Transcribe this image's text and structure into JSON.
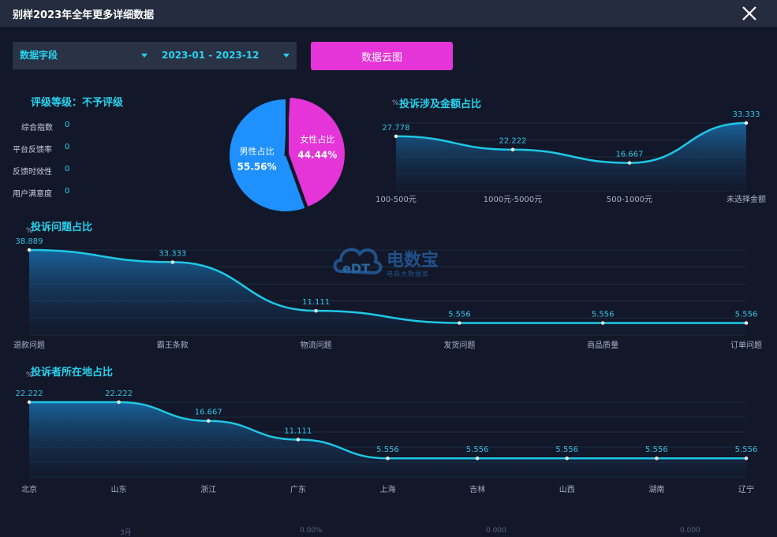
{
  "window": {
    "title": "别样2023年全年更多详细数据",
    "close_icon": "close-icon"
  },
  "filters": {
    "field": "数据字段",
    "date_range": "2023-01 - 2023-12",
    "caret_icon": "caret-down-icon"
  },
  "cloud_button": "数据云图",
  "rating": {
    "title": "评级等级：不予评级",
    "metrics": [
      {
        "label": "综合指数",
        "value": "0"
      },
      {
        "label": "平台反馈率",
        "value": "0"
      },
      {
        "label": "反馈时效性",
        "value": "0"
      },
      {
        "label": "用户满意度",
        "value": "0"
      }
    ]
  },
  "watermark": {
    "brand": "电数宝",
    "tagline": "电商大数据库",
    "mark": "eDT"
  },
  "footer": [
    "3月",
    "0.00%",
    "0.000",
    "0.000"
  ],
  "chart_data": [
    {
      "type": "pie",
      "categories": [
        "男性占比",
        "女性占比"
      ],
      "values": [
        55.56,
        44.44
      ],
      "labels": [
        "55.56%",
        "44.44%"
      ],
      "colors": [
        "#1e90ff",
        "#e535d8"
      ]
    },
    {
      "type": "area",
      "title": "投诉涉及金额占比",
      "ylabel": "%",
      "categories": [
        "100-500元",
        "1000元-5000元",
        "500-1000元",
        "未选择金额"
      ],
      "values": [
        27.778,
        22.222,
        16.667,
        33.333
      ],
      "color": "#1ec8e6"
    },
    {
      "type": "area",
      "title": "投诉问题占比",
      "ylabel": "%",
      "categories": [
        "退款问题",
        "霸王条款",
        "物流问题",
        "发货问题",
        "商品质量",
        "订单问题"
      ],
      "values": [
        38.889,
        33.333,
        11.111,
        5.556,
        5.556,
        5.556
      ],
      "color": "#1ec8e6"
    },
    {
      "type": "area",
      "title": "投诉者所在地占比",
      "ylabel": "%",
      "categories": [
        "北京",
        "山东",
        "浙江",
        "广东",
        "上海",
        "吉林",
        "山西",
        "湖南",
        "辽宁"
      ],
      "values": [
        22.222,
        22.222,
        16.667,
        11.111,
        5.556,
        5.556,
        5.556,
        5.556,
        5.556
      ],
      "color": "#1ec8e6"
    }
  ]
}
